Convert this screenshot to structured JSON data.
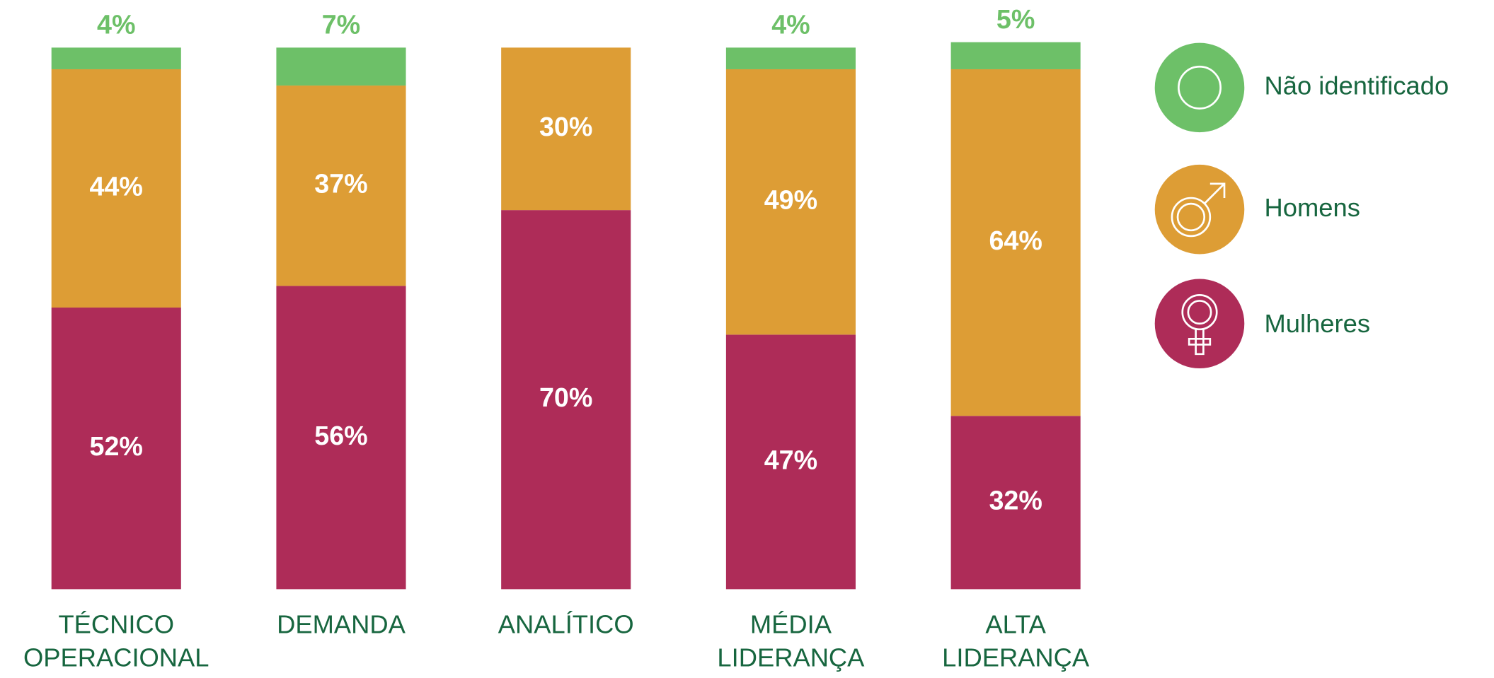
{
  "chart_data": {
    "type": "stacked_bar",
    "categories": [
      [
        "TÉCNICO",
        "OPERACIONAL"
      ],
      [
        "DEMANDA"
      ],
      [
        "ANALÍTICO"
      ],
      [
        "MÉDIA",
        "LIDERANÇA"
      ],
      [
        "ALTA",
        "LIDERANÇA"
      ]
    ],
    "ylim": [
      0,
      100
    ],
    "series": [
      {
        "name": "Mulheres",
        "color": "#ae2c58",
        "values": [
          52,
          56,
          70,
          47,
          32
        ],
        "value_labels": [
          "52%",
          "56%",
          "70%",
          "47%",
          "32%"
        ]
      },
      {
        "name": "Homens",
        "color": "#dd9d35",
        "values": [
          44,
          37,
          30,
          49,
          64
        ],
        "value_labels": [
          "44%",
          "37%",
          "30%",
          "49%",
          "64%"
        ]
      },
      {
        "name": "Não identificado",
        "color": "#6dc068",
        "values": [
          4,
          7,
          null,
          4,
          5
        ],
        "value_labels": [
          "4%",
          "7%",
          null,
          "4%",
          "5%"
        ]
      }
    ]
  }
}
